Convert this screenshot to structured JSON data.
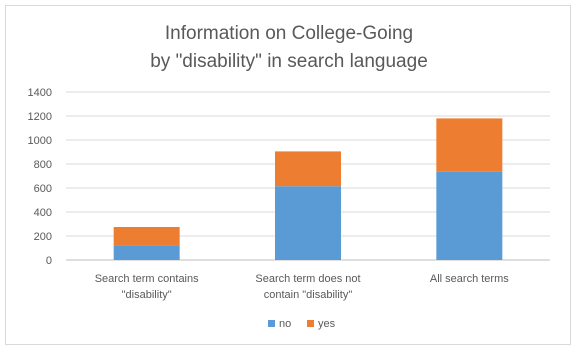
{
  "chart_data": {
    "type": "bar",
    "stacked": true,
    "title_lines": [
      "Information on College-Going",
      "by \"disability\" in search language"
    ],
    "categories": [
      [
        "Search term contains",
        "\"disability\""
      ],
      [
        "Search term does not",
        "contain \"disability\""
      ],
      [
        "All search terms"
      ]
    ],
    "series": [
      {
        "name": "no",
        "color": "#5b9bd5",
        "values": [
          120,
          615,
          735
        ]
      },
      {
        "name": "yes",
        "color": "#ed7d31",
        "values": [
          155,
          290,
          445
        ]
      }
    ],
    "ylim": [
      0,
      1400
    ],
    "yticks": [
      0,
      200,
      400,
      600,
      800,
      1000,
      1200,
      1400
    ],
    "grid": true,
    "legend_position": "bottom"
  }
}
